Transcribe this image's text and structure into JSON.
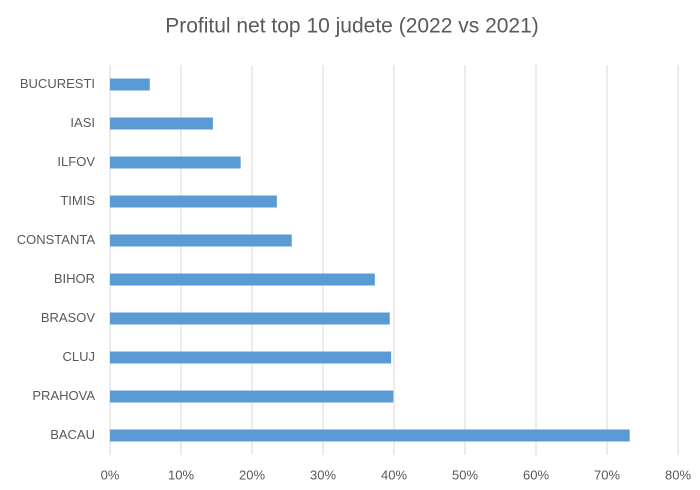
{
  "chart_data": {
    "type": "hbar",
    "title": "Profitul net top 10 judete (2022 vs 2021)",
    "categories": [
      "BUCURESTI",
      "IASI",
      "ILFOV",
      "TIMIS",
      "CONSTANTA",
      "BIHOR",
      "BRASOV",
      "CLUJ",
      "PRAHOVA",
      "BACAU"
    ],
    "values": [
      5.6,
      14.5,
      18.4,
      23.5,
      25.6,
      37.3,
      39.4,
      39.6,
      39.9,
      73.2
    ],
    "color": "#5b9bd5",
    "xlim": [
      0,
      80
    ],
    "xticks": [
      {
        "value": 0,
        "label": "0%"
      },
      {
        "value": 10,
        "label": "10%"
      },
      {
        "value": 20,
        "label": "20%"
      },
      {
        "value": 30,
        "label": "30%"
      },
      {
        "value": 40,
        "label": "40%"
      },
      {
        "value": 50,
        "label": "50%"
      },
      {
        "value": 60,
        "label": "60%"
      },
      {
        "value": 70,
        "label": "70%"
      },
      {
        "value": 80,
        "label": "80%"
      }
    ],
    "grid": true
  }
}
